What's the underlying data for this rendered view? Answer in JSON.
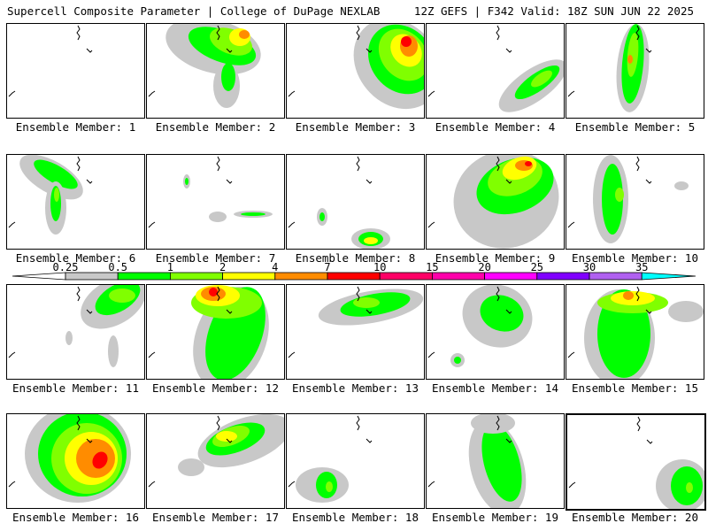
{
  "header": {
    "left_title": "Supercell Composite Parameter | College of DuPage NEXLAB",
    "right_title": "12Z GEFS | F342 Valid: 18Z SUN JUN 22 2025"
  },
  "legend": {
    "ticks": [
      "0.25",
      "0.5",
      "1",
      "2",
      "4",
      "7",
      "10",
      "15",
      "20",
      "25",
      "30",
      "35"
    ],
    "colors": [
      "#ffffff",
      "#c8c8c8",
      "#00ff00",
      "#80ff00",
      "#ffff00",
      "#ff8c00",
      "#ff0000",
      "#ff0066",
      "#ff00aa",
      "#ff00ff",
      "#8000ff",
      "#b060f0",
      "#00ffff"
    ]
  },
  "members": [
    {
      "label": "Ensemble Member: 1",
      "highlight": false
    },
    {
      "label": "Ensemble Member: 2",
      "highlight": false
    },
    {
      "label": "Ensemble Member: 3",
      "highlight": false
    },
    {
      "label": "Ensemble Member: 4",
      "highlight": false
    },
    {
      "label": "Ensemble Member: 5",
      "highlight": false
    },
    {
      "label": "Ensemble Member: 6",
      "highlight": false
    },
    {
      "label": "Ensemble Member: 7",
      "highlight": false
    },
    {
      "label": "Ensemble Member: 8",
      "highlight": false
    },
    {
      "label": "Ensemble Member: 9",
      "highlight": false
    },
    {
      "label": "Ensemble Member: 10",
      "highlight": false
    },
    {
      "label": "Ensemble Member: 11",
      "highlight": false
    },
    {
      "label": "Ensemble Member: 12",
      "highlight": false
    },
    {
      "label": "Ensemble Member: 13",
      "highlight": false
    },
    {
      "label": "Ensemble Member: 14",
      "highlight": false
    },
    {
      "label": "Ensemble Member: 15",
      "highlight": false
    },
    {
      "label": "Ensemble Member: 16",
      "highlight": false
    },
    {
      "label": "Ensemble Member: 17",
      "highlight": false
    },
    {
      "label": "Ensemble Member: 18",
      "highlight": false
    },
    {
      "label": "Ensemble Member: 19",
      "highlight": false
    },
    {
      "label": "Ensemble Member: 20",
      "highlight": true
    }
  ]
}
